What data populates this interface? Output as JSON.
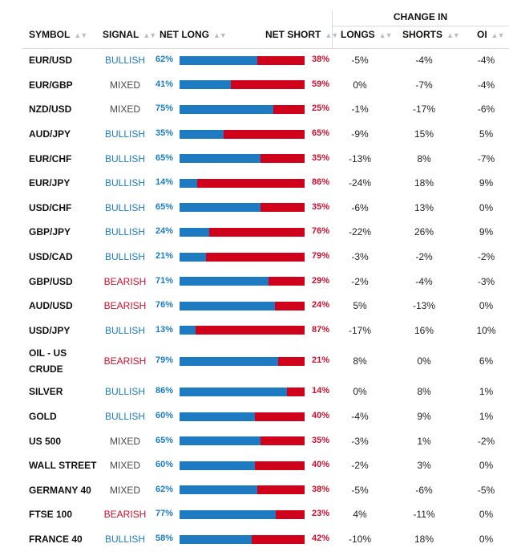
{
  "header": {
    "symbol": "SYMBOL",
    "signal": "SIGNAL",
    "net_long": "NET LONG",
    "net_short": "NET SHORT",
    "change_in": "CHANGE IN",
    "longs": "LONGS",
    "shorts": "SHORTS",
    "oi": "OI",
    "sort_icon": "sort-icon",
    "sort_glyph": "▲▼"
  },
  "colors": {
    "bullish": "#1b7bbf",
    "bearish": "#c8102e",
    "mixed": "#4a4a4a",
    "long_bar": "#1f7bc1",
    "short_bar": "#d0021b"
  },
  "rows": [
    {
      "symbol": "EUR/USD",
      "signal": "BULLISH",
      "net_long": "62%",
      "net_short": "38%",
      "long_fraction": 0.62,
      "longs": "-5%",
      "shorts": "-4%",
      "oi": "-4%"
    },
    {
      "symbol": "EUR/GBP",
      "signal": "MIXED",
      "net_long": "41%",
      "net_short": "59%",
      "long_fraction": 0.41,
      "longs": "0%",
      "shorts": "-7%",
      "oi": "-4%"
    },
    {
      "symbol": "NZD/USD",
      "signal": "MIXED",
      "net_long": "75%",
      "net_short": "25%",
      "long_fraction": 0.75,
      "longs": "-1%",
      "shorts": "-17%",
      "oi": "-6%"
    },
    {
      "symbol": "AUD/JPY",
      "signal": "BULLISH",
      "net_long": "35%",
      "net_short": "65%",
      "long_fraction": 0.35,
      "longs": "-9%",
      "shorts": "15%",
      "oi": "5%"
    },
    {
      "symbol": "EUR/CHF",
      "signal": "BULLISH",
      "net_long": "65%",
      "net_short": "35%",
      "long_fraction": 0.65,
      "longs": "-13%",
      "shorts": "8%",
      "oi": "-7%"
    },
    {
      "symbol": "EUR/JPY",
      "signal": "BULLISH",
      "net_long": "14%",
      "net_short": "86%",
      "long_fraction": 0.14,
      "longs": "-24%",
      "shorts": "18%",
      "oi": "9%"
    },
    {
      "symbol": "USD/CHF",
      "signal": "BULLISH",
      "net_long": "65%",
      "net_short": "35%",
      "long_fraction": 0.65,
      "longs": "-6%",
      "shorts": "13%",
      "oi": "0%"
    },
    {
      "symbol": "GBP/JPY",
      "signal": "BULLISH",
      "net_long": "24%",
      "net_short": "76%",
      "long_fraction": 0.24,
      "longs": "-22%",
      "shorts": "26%",
      "oi": "9%"
    },
    {
      "symbol": "USD/CAD",
      "signal": "BULLISH",
      "net_long": "21%",
      "net_short": "79%",
      "long_fraction": 0.21,
      "longs": "-3%",
      "shorts": "-2%",
      "oi": "-2%"
    },
    {
      "symbol": "GBP/USD",
      "signal": "BEARISH",
      "net_long": "71%",
      "net_short": "29%",
      "long_fraction": 0.71,
      "longs": "-2%",
      "shorts": "-4%",
      "oi": "-3%"
    },
    {
      "symbol": "AUD/USD",
      "signal": "BEARISH",
      "net_long": "76%",
      "net_short": "24%",
      "long_fraction": 0.76,
      "longs": "5%",
      "shorts": "-13%",
      "oi": "0%"
    },
    {
      "symbol": "USD/JPY",
      "signal": "BULLISH",
      "net_long": "13%",
      "net_short": "87%",
      "long_fraction": 0.13,
      "longs": "-17%",
      "shorts": "16%",
      "oi": "10%"
    },
    {
      "symbol": "OIL - US CRUDE",
      "signal": "BEARISH",
      "net_long": "79%",
      "net_short": "21%",
      "long_fraction": 0.79,
      "longs": "8%",
      "shorts": "0%",
      "oi": "6%"
    },
    {
      "symbol": "SILVER",
      "signal": "BULLISH",
      "net_long": "86%",
      "net_short": "14%",
      "long_fraction": 0.86,
      "longs": "0%",
      "shorts": "8%",
      "oi": "1%"
    },
    {
      "symbol": "GOLD",
      "signal": "BULLISH",
      "net_long": "60%",
      "net_short": "40%",
      "long_fraction": 0.6,
      "longs": "-4%",
      "shorts": "9%",
      "oi": "1%"
    },
    {
      "symbol": "US 500",
      "signal": "MIXED",
      "net_long": "65%",
      "net_short": "35%",
      "long_fraction": 0.65,
      "longs": "-3%",
      "shorts": "1%",
      "oi": "-2%"
    },
    {
      "symbol": "WALL STREET",
      "signal": "MIXED",
      "net_long": "60%",
      "net_short": "40%",
      "long_fraction": 0.6,
      "longs": "-2%",
      "shorts": "3%",
      "oi": "0%"
    },
    {
      "symbol": "GERMANY 40",
      "signal": "MIXED",
      "net_long": "62%",
      "net_short": "38%",
      "long_fraction": 0.62,
      "longs": "-5%",
      "shorts": "-6%",
      "oi": "-5%"
    },
    {
      "symbol": "FTSE 100",
      "signal": "BEARISH",
      "net_long": "77%",
      "net_short": "23%",
      "long_fraction": 0.77,
      "longs": "4%",
      "shorts": "-11%",
      "oi": "0%"
    },
    {
      "symbol": "FRANCE 40",
      "signal": "BULLISH",
      "net_long": "58%",
      "net_short": "42%",
      "long_fraction": 0.58,
      "longs": "-10%",
      "shorts": "18%",
      "oi": "0%"
    }
  ]
}
